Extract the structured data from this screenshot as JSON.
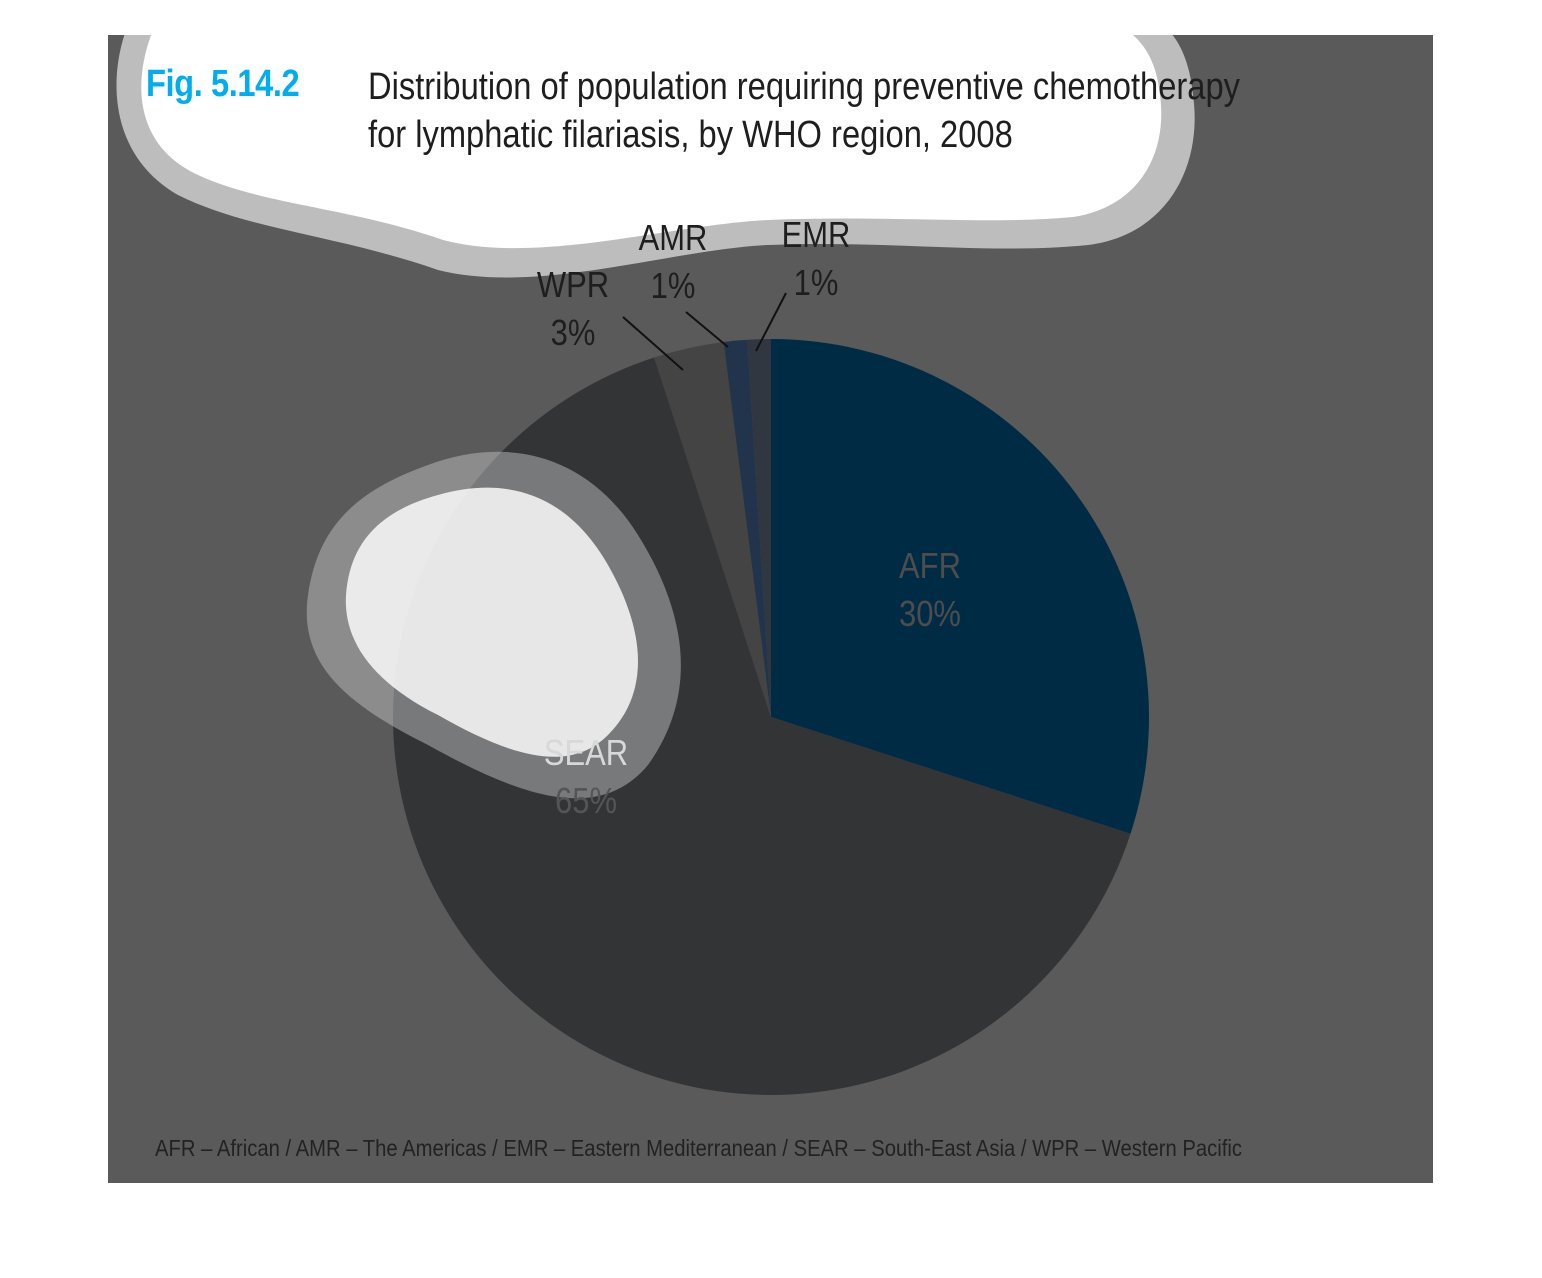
{
  "figure": {
    "number": "Fig. 5.14.2",
    "title_line1": "Distribution of population requiring preventive chemotherapy",
    "title_line2": "for lymphatic filariasis, by WHO region, 2008",
    "footnote": "AFR – African / AMR – The Americas / EMR – Eastern Mediterranean / SEAR – South-East Asia / WPR – Western Pacific"
  },
  "colors": {
    "background": "#5a5a5a",
    "AFR": "#002b45",
    "SEAR": "#333436",
    "WPR": "#444444",
    "AMR": "#22344c",
    "EMR": "#303740",
    "title_number": "#00aeef"
  },
  "chart_data": {
    "type": "pie",
    "title": "Distribution of population requiring preventive chemotherapy for lymphatic filariasis, by WHO region, 2008",
    "slices": [
      {
        "name": "AFR",
        "value": 30,
        "label": "30%"
      },
      {
        "name": "SEAR",
        "value": 65,
        "label": "65%"
      },
      {
        "name": "WPR",
        "value": 3,
        "label": "3%"
      },
      {
        "name": "AMR",
        "value": 1,
        "label": "1%"
      },
      {
        "name": "EMR",
        "value": 1,
        "label": "1%"
      }
    ],
    "start": "12 o'clock",
    "direction": "clockwise"
  }
}
